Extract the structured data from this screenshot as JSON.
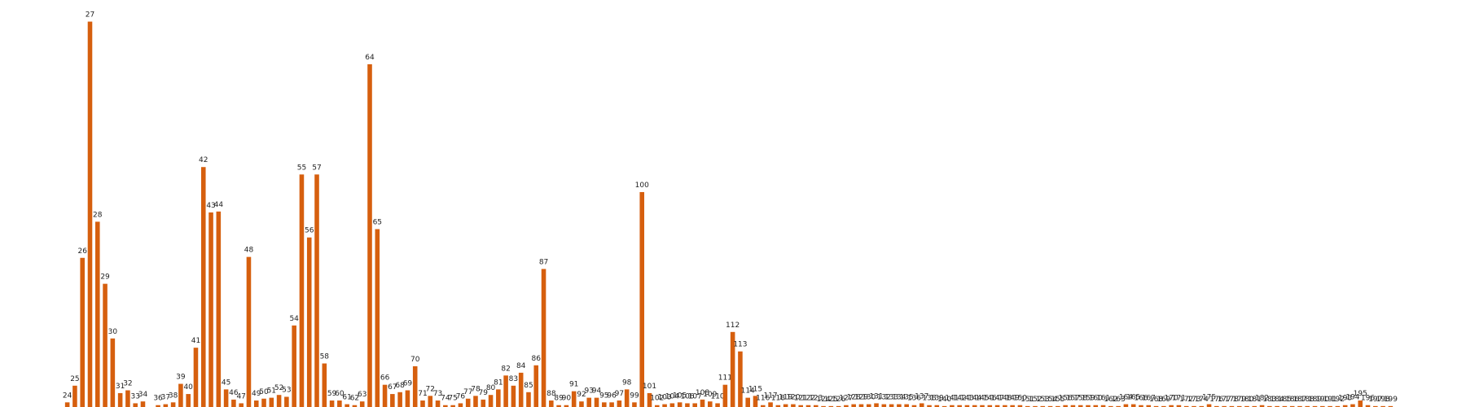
{
  "chart_data": {
    "type": "bar",
    "categories": [
      24,
      25,
      26,
      27,
      28,
      29,
      30,
      31,
      32,
      33,
      34,
      null,
      36,
      37,
      38,
      39,
      40,
      41,
      42,
      43,
      44,
      45,
      46,
      47,
      48,
      49,
      50,
      51,
      52,
      53,
      54,
      55,
      56,
      57,
      58,
      59,
      60,
      61,
      62,
      63,
      64,
      65,
      66,
      67,
      68,
      69,
      70,
      71,
      72,
      73,
      74,
      75,
      76,
      77,
      78,
      79,
      80,
      81,
      82,
      83,
      84,
      85,
      86,
      87,
      88,
      89,
      90,
      91,
      92,
      93,
      94,
      95,
      96,
      97,
      98,
      99,
      100,
      101,
      102,
      103,
      104,
      105,
      106,
      107,
      108,
      109,
      110,
      111,
      112,
      113,
      114,
      115,
      116,
      117,
      118,
      119,
      120,
      121,
      122,
      123,
      124,
      125,
      126,
      127,
      128,
      129,
      130,
      131,
      132,
      133,
      134,
      135,
      136,
      137,
      138,
      139,
      140,
      141,
      142,
      143,
      144,
      145,
      146,
      147,
      148,
      149,
      150,
      151,
      152,
      153,
      154,
      155,
      156,
      157,
      158,
      159,
      160,
      161,
      162,
      163,
      164,
      165,
      166,
      167,
      168,
      169,
      170,
      171,
      172,
      173,
      174,
      175,
      176,
      177,
      178,
      179,
      180,
      181,
      182,
      183,
      184,
      185,
      186,
      187,
      188,
      189,
      190,
      191,
      192,
      193,
      194,
      195,
      196,
      197,
      198,
      199
    ],
    "values": [
      5,
      23,
      161,
      416,
      200,
      133,
      74,
      15,
      18,
      4,
      6,
      null,
      2,
      3,
      5,
      25,
      14,
      64,
      259,
      210,
      211,
      19,
      8,
      4,
      162,
      7,
      9,
      10,
      13,
      11,
      88,
      251,
      183,
      251,
      47,
      7,
      7,
      3,
      2,
      6,
      370,
      192,
      24,
      14,
      16,
      18,
      44,
      7,
      12,
      7,
      2,
      2,
      4,
      9,
      12,
      8,
      13,
      19,
      34,
      23,
      37,
      16,
      45,
      149,
      7,
      2,
      2,
      17,
      6,
      10,
      10,
      5,
      5,
      7,
      19,
      5,
      232,
      15,
      2,
      3,
      4,
      5,
      4,
      4,
      8,
      6,
      4,
      24,
      81,
      60,
      10,
      12,
      2,
      5,
      2,
      3,
      3,
      2,
      2,
      2,
      1,
      1,
      1,
      2,
      3,
      3,
      3,
      4,
      3,
      3,
      3,
      3,
      2,
      4,
      2,
      2,
      1,
      2,
      2,
      2,
      2,
      2,
      2,
      2,
      2,
      2,
      2,
      1,
      1,
      1,
      1,
      1,
      2,
      2,
      2,
      2,
      2,
      2,
      1,
      1,
      3,
      3,
      2,
      2,
      1,
      1,
      2,
      2,
      1,
      1,
      1,
      3,
      1,
      1,
      1,
      1,
      1,
      1,
      2,
      1,
      1,
      1,
      1,
      1,
      1,
      1,
      1,
      1,
      1,
      2,
      3,
      7,
      2,
      1,
      1,
      1
    ],
    "color": "#d65f0e",
    "ylim": [
      0,
      420
    ]
  }
}
